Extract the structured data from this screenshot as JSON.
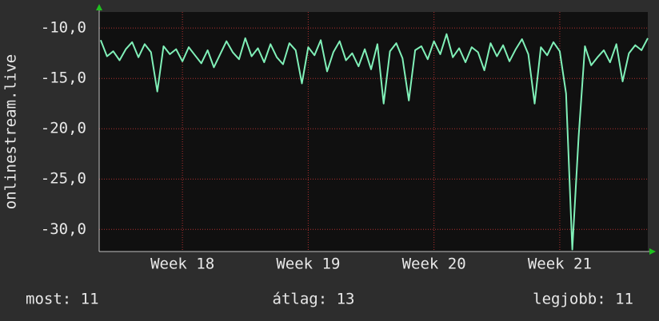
{
  "chart_data": {
    "type": "line",
    "y_label": "onlinestream.live",
    "x": [
      17.35,
      17.4,
      17.45,
      17.5,
      17.55,
      17.6,
      17.65,
      17.7,
      17.75,
      17.8,
      17.85,
      17.9,
      17.95,
      18.0,
      18.05,
      18.1,
      18.15,
      18.2,
      18.25,
      18.3,
      18.35,
      18.4,
      18.45,
      18.5,
      18.55,
      18.6,
      18.65,
      18.7,
      18.75,
      18.8,
      18.85,
      18.9,
      18.95,
      19.0,
      19.05,
      19.1,
      19.15,
      19.2,
      19.25,
      19.3,
      19.35,
      19.4,
      19.45,
      19.5,
      19.55,
      19.6,
      19.65,
      19.7,
      19.75,
      19.8,
      19.85,
      19.9,
      19.95,
      20.0,
      20.05,
      20.1,
      20.15,
      20.2,
      20.25,
      20.3,
      20.35,
      20.4,
      20.45,
      20.5,
      20.55,
      20.6,
      20.65,
      20.7,
      20.75,
      20.8,
      20.85,
      20.9,
      20.95,
      21.0,
      21.05,
      21.1,
      21.15,
      21.2,
      21.25,
      21.3,
      21.35,
      21.4,
      21.45,
      21.5,
      21.55,
      21.6,
      21.65,
      21.7
    ],
    "series": [
      {
        "name": "onlinestream.live",
        "color": "#80f0b8",
        "values": [
          -11.2,
          -12.8,
          -12.3,
          -13.2,
          -12.1,
          -11.4,
          -12.9,
          -11.6,
          -12.4,
          -16.3,
          -11.8,
          -12.6,
          -12.1,
          -13.3,
          -11.9,
          -12.7,
          -13.5,
          -12.2,
          -13.9,
          -12.6,
          -11.3,
          -12.4,
          -13.1,
          -11.0,
          -12.8,
          -12.0,
          -13.4,
          -11.6,
          -12.9,
          -13.6,
          -11.5,
          -12.2,
          -15.5,
          -11.9,
          -12.7,
          -11.2,
          -14.3,
          -12.4,
          -11.3,
          -13.2,
          -12.5,
          -13.8,
          -12.1,
          -14.1,
          -11.6,
          -17.5,
          -12.3,
          -11.5,
          -13.0,
          -17.2,
          -12.2,
          -11.8,
          -13.1,
          -11.3,
          -12.6,
          -10.6,
          -12.9,
          -12.0,
          -13.4,
          -11.9,
          -12.4,
          -14.2,
          -11.5,
          -12.8,
          -11.7,
          -13.3,
          -12.1,
          -11.1,
          -12.6,
          -17.5,
          -11.9,
          -12.7,
          -11.4,
          -12.3,
          -16.5,
          -32.0,
          -20.8,
          -11.8,
          -13.7,
          -12.9,
          -12.2,
          -13.4,
          -11.6,
          -15.3,
          -12.5,
          -11.7,
          -12.2,
          -11.0
        ]
      }
    ],
    "xlim": [
      17.338,
      21.7
    ],
    "xticks": [
      {
        "value": 18,
        "label": "Week 18"
      },
      {
        "value": 19,
        "label": "Week 19"
      },
      {
        "value": 20,
        "label": "Week 20"
      },
      {
        "value": 21,
        "label": "Week 21"
      }
    ],
    "ylim": [
      -32.2,
      -8.4
    ],
    "yticks": [
      {
        "value": -10,
        "label": "-10,0"
      },
      {
        "value": -15,
        "label": "-15,0"
      },
      {
        "value": -20,
        "label": "-20,0"
      },
      {
        "value": -25,
        "label": "-25,0"
      },
      {
        "value": -30,
        "label": "-30,0"
      }
    ],
    "grid": true,
    "footer": [
      "most: 11",
      "átlag: 13",
      "legjobb: 11"
    ]
  }
}
